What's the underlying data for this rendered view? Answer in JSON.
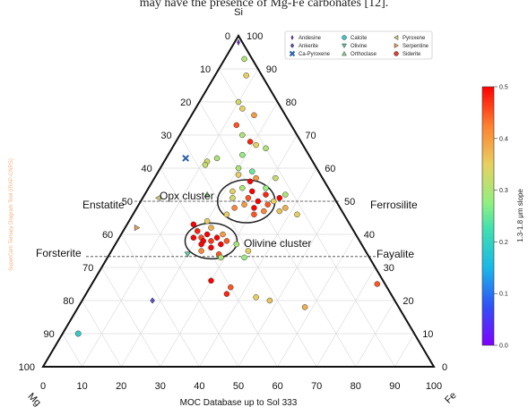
{
  "caption_fragment": "may have the presence of Mg-Fe carbonates [12].",
  "watermark": "SuperCam Ternary Diagram Tool (IRAP-CNRS)",
  "chart_data": {
    "type": "scatter",
    "subtype": "ternary",
    "corners": {
      "top": "Si",
      "left": "Mg",
      "right": "Fe"
    },
    "xlabel": "MOC Database up to Sol 333",
    "mg_axis_ticks": [
      "0",
      "10",
      "20",
      "30",
      "40",
      "50",
      "60",
      "70",
      "80",
      "90",
      "100"
    ],
    "fe_axis_ticks": [
      "100",
      "90",
      "80",
      "70",
      "60",
      "50",
      "40",
      "30",
      "20",
      "10",
      "0"
    ],
    "bottom_axis_ticks": [
      "0",
      "10",
      "20",
      "30",
      "40",
      "50",
      "60",
      "70",
      "80",
      "90",
      "100"
    ],
    "grid": true,
    "legend_position": "top-right",
    "legend": [
      {
        "label": "Andesine",
        "marker": "diamond-thin",
        "color": "#6a2fd0"
      },
      {
        "label": "Ankerite",
        "marker": "diamond",
        "color": "#5a4fbf"
      },
      {
        "label": "Ca-Pyroxene",
        "marker": "x",
        "color": "#2b5fa8"
      },
      {
        "label": "Calcite",
        "marker": "circle",
        "color": "#3cc9c4"
      },
      {
        "label": "Olivine",
        "marker": "triangle-down",
        "color": "#5fc9a0"
      },
      {
        "label": "Orthoclase",
        "marker": "triangle-up",
        "color": "#8fd48a"
      },
      {
        "label": "Pyroxene",
        "marker": "triangle-left",
        "color": "#c8c87a"
      },
      {
        "label": "Serpentine",
        "marker": "triangle-right",
        "color": "#e0a060"
      },
      {
        "label": "Siderite",
        "marker": "circle",
        "color": "#d84030"
      }
    ],
    "colorbar": {
      "label": "1.3-1.8 μm slope",
      "range": [
        0.0,
        0.5
      ],
      "ticks": [
        "0.0",
        "0.1",
        "0.2",
        "0.3",
        "0.4",
        "0.5"
      ]
    },
    "annotations": [
      {
        "text": "Opx cluster"
      },
      {
        "text": "Olivine cluster"
      },
      {
        "text": "Enstatite"
      },
      {
        "text": "Ferrosilite"
      },
      {
        "text": "Forsterite"
      },
      {
        "text": "Fayalite"
      }
    ],
    "reference_lines": [
      {
        "name": "pyroxene",
        "si": 50
      },
      {
        "name": "olivine",
        "si": 33.3
      }
    ],
    "clusters": [
      {
        "name": "Opx cluster",
        "center": {
          "si": 50,
          "mg": 23
        }
      },
      {
        "name": "Olivine cluster",
        "center": {
          "si": 38,
          "mg": 38
        }
      }
    ],
    "minerals": [
      {
        "name": "Andesine",
        "si": 98,
        "mg": 1
      },
      {
        "name": "Ankerite",
        "si": 20,
        "mg": 62
      },
      {
        "name": "Ca-Pyroxene",
        "si": 63,
        "mg": 32
      },
      {
        "name": "Calcite",
        "si": 10,
        "mg": 86
      },
      {
        "name": "Olivine",
        "si": 34,
        "mg": 46
      },
      {
        "name": "Orthoclase",
        "si": 52,
        "mg": 32
      },
      {
        "name": "Pyroxene",
        "si": 51,
        "mg": 45
      },
      {
        "name": "Serpentine",
        "si": 42,
        "mg": 55
      }
    ],
    "points": [
      {
        "si": 93,
        "mg": 2,
        "v": 0.3
      },
      {
        "si": 88,
        "mg": 4,
        "v": 0.35
      },
      {
        "si": 80,
        "mg": 10,
        "v": 0.33
      },
      {
        "si": 78,
        "mg": 10,
        "v": 0.35
      },
      {
        "si": 76,
        "mg": 8,
        "v": 0.4
      },
      {
        "si": 73,
        "mg": 14,
        "v": 0.45
      },
      {
        "si": 70,
        "mg": 14,
        "v": 0.3
      },
      {
        "si": 68,
        "mg": 13,
        "v": 0.48
      },
      {
        "si": 67,
        "mg": 12,
        "v": 0.35
      },
      {
        "si": 66,
        "mg": 10,
        "v": 0.3
      },
      {
        "si": 64,
        "mg": 17,
        "v": 0.28
      },
      {
        "si": 63,
        "mg": 24,
        "v": 0.3
      },
      {
        "si": 62,
        "mg": 27,
        "v": 0.33
      },
      {
        "si": 61,
        "mg": 28,
        "v": 0.32
      },
      {
        "si": 60,
        "mg": 20,
        "v": 0.3
      },
      {
        "si": 59,
        "mg": 17,
        "v": 0.25
      },
      {
        "si": 58,
        "mg": 21,
        "v": 0.35
      },
      {
        "si": 57,
        "mg": 17,
        "v": 0.4
      },
      {
        "si": 57,
        "mg": 12,
        "v": 0.32
      },
      {
        "si": 56,
        "mg": 19,
        "v": 0.5
      },
      {
        "si": 54,
        "mg": 22,
        "v": 0.3
      },
      {
        "si": 54,
        "mg": 16,
        "v": 0.28
      },
      {
        "si": 53,
        "mg": 25,
        "v": 0.35
      },
      {
        "si": 53,
        "mg": 20,
        "v": 0.5
      },
      {
        "si": 52,
        "mg": 17,
        "v": 0.48
      },
      {
        "si": 52,
        "mg": 12,
        "v": 0.3
      },
      {
        "si": 51,
        "mg": 26,
        "v": 0.33
      },
      {
        "si": 51,
        "mg": 22,
        "v": 0.45
      },
      {
        "si": 51,
        "mg": 14,
        "v": 0.5
      },
      {
        "si": 50,
        "mg": 20,
        "v": 0.5
      },
      {
        "si": 50,
        "mg": 16,
        "v": 0.35
      },
      {
        "si": 49,
        "mg": 24,
        "v": 0.4
      },
      {
        "si": 49,
        "mg": 18,
        "v": 0.45
      },
      {
        "si": 48,
        "mg": 27,
        "v": 0.42
      },
      {
        "si": 48,
        "mg": 22,
        "v": 0.5
      },
      {
        "si": 48,
        "mg": 14,
        "v": 0.38
      },
      {
        "si": 47,
        "mg": 20,
        "v": 0.42
      },
      {
        "si": 47,
        "mg": 16,
        "v": 0.36
      },
      {
        "si": 46,
        "mg": 23,
        "v": 0.45
      },
      {
        "si": 46,
        "mg": 12,
        "v": 0.35
      },
      {
        "si": 46,
        "mg": 30,
        "v": 0.35
      },
      {
        "si": 44,
        "mg": 36,
        "v": 0.35
      },
      {
        "si": 43,
        "mg": 40,
        "v": 0.5
      },
      {
        "si": 42,
        "mg": 36,
        "v": 0.38
      },
      {
        "si": 41,
        "mg": 40,
        "v": 0.48
      },
      {
        "si": 40,
        "mg": 38,
        "v": 0.5
      },
      {
        "si": 40,
        "mg": 34,
        "v": 0.4
      },
      {
        "si": 39,
        "mg": 42,
        "v": 0.5
      },
      {
        "si": 39,
        "mg": 40,
        "v": 0.46
      },
      {
        "si": 39,
        "mg": 36,
        "v": 0.5
      },
      {
        "si": 38,
        "mg": 40,
        "v": 0.5
      },
      {
        "si": 38,
        "mg": 38,
        "v": 0.47
      },
      {
        "si": 38,
        "mg": 34,
        "v": 0.45
      },
      {
        "si": 37,
        "mg": 41,
        "v": 0.5
      },
      {
        "si": 37,
        "mg": 36,
        "v": 0.5
      },
      {
        "si": 37,
        "mg": 32,
        "v": 0.3
      },
      {
        "si": 36,
        "mg": 39,
        "v": 0.5
      },
      {
        "si": 35,
        "mg": 42,
        "v": 0.42
      },
      {
        "si": 35,
        "mg": 30,
        "v": 0.35
      },
      {
        "si": 34,
        "mg": 38,
        "v": 0.45
      },
      {
        "si": 33,
        "mg": 38,
        "v": 0.3
      },
      {
        "si": 33,
        "mg": 32,
        "v": 0.28
      },
      {
        "si": 26,
        "mg": 44,
        "v": 0.5
      },
      {
        "si": 24,
        "mg": 40,
        "v": 0.45
      },
      {
        "si": 22,
        "mg": 42,
        "v": 0.48
      },
      {
        "si": 21,
        "mg": 35,
        "v": 0.35
      },
      {
        "si": 20,
        "mg": 32,
        "v": 0.36
      },
      {
        "si": 18,
        "mg": 24,
        "v": 0.38
      },
      {
        "si": 25,
        "mg": 2,
        "v": 0.45
      }
    ]
  }
}
